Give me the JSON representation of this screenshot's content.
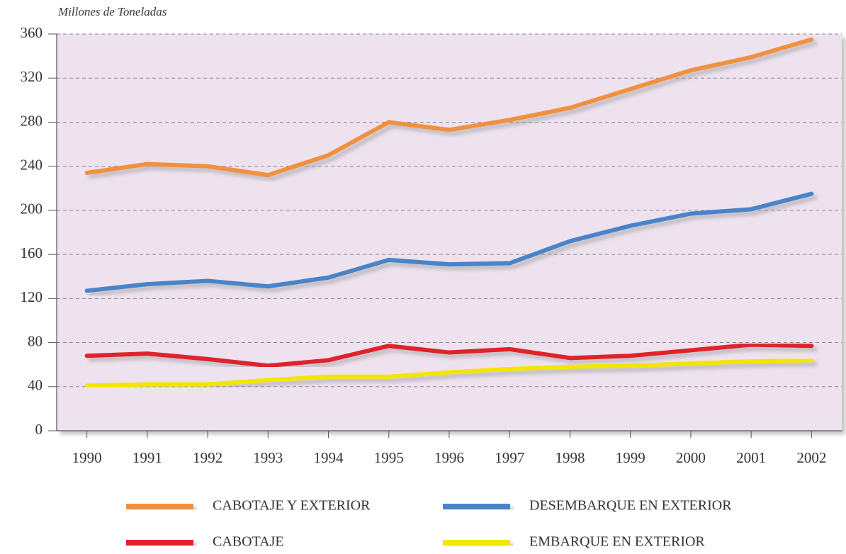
{
  "chart_data": {
    "type": "line",
    "y_label": "Millones de Toneladas",
    "categories": [
      "1990",
      "1991",
      "1992",
      "1993",
      "1994",
      "1995",
      "1996",
      "1997",
      "1998",
      "1999",
      "2000",
      "2001",
      "2002"
    ],
    "series": [
      {
        "name": "CABOTAJE Y EXTERIOR",
        "color": "#f0913f",
        "values": [
          234,
          242,
          240,
          232,
          250,
          280,
          273,
          282,
          293,
          310,
          327,
          339,
          355
        ]
      },
      {
        "name": "DESEMBARQUE EN EXTERIOR",
        "color": "#4a84c8",
        "values": [
          127,
          133,
          136,
          131,
          139,
          155,
          151,
          152,
          172,
          186,
          197,
          201,
          215
        ]
      },
      {
        "name": "CABOTAJE",
        "color": "#e0242a",
        "values": [
          68,
          70,
          65,
          59,
          64,
          77,
          71,
          74,
          66,
          68,
          73,
          78,
          77
        ]
      },
      {
        "name": "EMBARQUE EN EXTERIOR",
        "color": "#f2e600",
        "values": [
          41,
          42,
          42,
          46,
          49,
          49,
          53,
          56,
          58,
          59,
          61,
          63,
          64
        ]
      }
    ],
    "ylim": [
      0,
      360
    ],
    "yticks": [
      0,
      40,
      80,
      120,
      160,
      200,
      240,
      280,
      320,
      360
    ],
    "grid": true
  }
}
